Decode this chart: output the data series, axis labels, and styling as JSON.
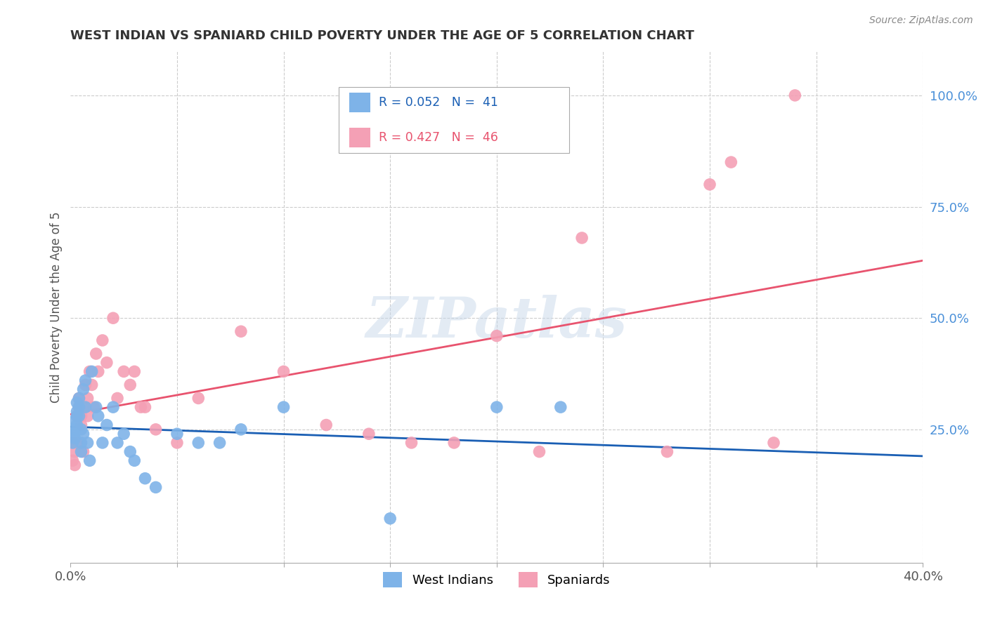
{
  "title": "WEST INDIAN VS SPANIARD CHILD POVERTY UNDER THE AGE OF 5 CORRELATION CHART",
  "source": "Source: ZipAtlas.com",
  "ylabel": "Child Poverty Under the Age of 5",
  "ytick_labels": [
    "",
    "25.0%",
    "50.0%",
    "75.0%",
    "100.0%"
  ],
  "ytick_values": [
    0.0,
    0.25,
    0.5,
    0.75,
    1.0
  ],
  "xlim": [
    0.0,
    0.4
  ],
  "ylim": [
    -0.05,
    1.1
  ],
  "legend_blue_label": "R = 0.052   N =  41",
  "legend_pink_label": "R = 0.427   N =  46",
  "legend_bottom_blue": "West Indians",
  "legend_bottom_pink": "Spaniards",
  "blue_color": "#7eb3e8",
  "pink_color": "#f4a0b5",
  "trendline_blue_color": "#1a5fb4",
  "trendline_pink_color": "#e8536e",
  "blue_x": [
    0.001,
    0.001,
    0.002,
    0.002,
    0.002,
    0.003,
    0.003,
    0.003,
    0.003,
    0.004,
    0.004,
    0.004,
    0.005,
    0.005,
    0.005,
    0.006,
    0.006,
    0.007,
    0.007,
    0.008,
    0.009,
    0.01,
    0.012,
    0.013,
    0.015,
    0.017,
    0.02,
    0.022,
    0.025,
    0.028,
    0.03,
    0.035,
    0.04,
    0.05,
    0.06,
    0.07,
    0.08,
    0.1,
    0.15,
    0.2,
    0.23
  ],
  "blue_y": [
    0.22,
    0.24,
    0.25,
    0.27,
    0.23,
    0.29,
    0.31,
    0.26,
    0.28,
    0.3,
    0.28,
    0.32,
    0.25,
    0.22,
    0.2,
    0.34,
    0.24,
    0.36,
    0.3,
    0.22,
    0.18,
    0.38,
    0.3,
    0.28,
    0.22,
    0.26,
    0.3,
    0.22,
    0.24,
    0.2,
    0.18,
    0.14,
    0.12,
    0.24,
    0.22,
    0.22,
    0.25,
    0.3,
    0.05,
    0.3,
    0.3
  ],
  "pink_x": [
    0.001,
    0.001,
    0.002,
    0.002,
    0.003,
    0.003,
    0.004,
    0.004,
    0.005,
    0.005,
    0.006,
    0.006,
    0.007,
    0.008,
    0.008,
    0.009,
    0.01,
    0.011,
    0.012,
    0.013,
    0.015,
    0.017,
    0.02,
    0.022,
    0.025,
    0.028,
    0.03,
    0.033,
    0.035,
    0.04,
    0.05,
    0.06,
    0.08,
    0.1,
    0.12,
    0.14,
    0.16,
    0.18,
    0.2,
    0.22,
    0.24,
    0.28,
    0.3,
    0.31,
    0.33,
    0.34
  ],
  "pink_y": [
    0.18,
    0.22,
    0.2,
    0.17,
    0.28,
    0.22,
    0.3,
    0.32,
    0.26,
    0.28,
    0.3,
    0.2,
    0.35,
    0.32,
    0.28,
    0.38,
    0.35,
    0.3,
    0.42,
    0.38,
    0.45,
    0.4,
    0.5,
    0.32,
    0.38,
    0.35,
    0.38,
    0.3,
    0.3,
    0.25,
    0.22,
    0.32,
    0.47,
    0.38,
    0.26,
    0.24,
    0.22,
    0.22,
    0.46,
    0.2,
    0.68,
    0.2,
    0.8,
    0.85,
    0.22,
    1.0
  ],
  "watermark_text": "ZIPatlas",
  "background_color": "#ffffff",
  "grid_color": "#cccccc"
}
